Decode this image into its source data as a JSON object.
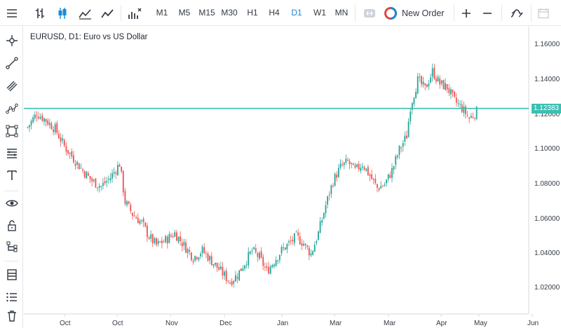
{
  "toolbar": {
    "timeframes": [
      "M1",
      "M5",
      "M15",
      "M30",
      "H1",
      "H4",
      "D1",
      "W1",
      "MN"
    ],
    "active_timeframe": "D1",
    "new_order_label": "New Order"
  },
  "chart": {
    "title": "EURUSD, D1: Euro vs US Dollar",
    "current_price": "1.12383",
    "accent_color": "#3cbfb3",
    "bull_color": "#26a69a",
    "bear_color": "#ef5350"
  },
  "chart_data": {
    "type": "candlestick",
    "title": "EURUSD, D1: Euro vs US Dollar",
    "x_tick_labels": [
      "Oct",
      "Oct",
      "Nov",
      "Dec",
      "Jan",
      "Mar",
      "Mar",
      "Apr",
      "May",
      "Jun"
    ],
    "y_tick_labels": [
      "1.16000",
      "1.14000",
      "1.12000",
      "1.10000",
      "1.08000",
      "1.06000",
      "1.04000",
      "1.02000"
    ],
    "ylim": [
      1.005,
      1.17
    ],
    "horizontal_line": 1.12383,
    "close_path": [
      [
        0,
        1.113
      ],
      [
        5,
        1.121
      ],
      [
        10,
        1.117
      ],
      [
        15,
        1.112
      ],
      [
        20,
        1.102
      ],
      [
        25,
        1.095
      ],
      [
        30,
        1.088
      ],
      [
        35,
        1.082
      ],
      [
        40,
        1.079
      ],
      [
        45,
        1.084
      ],
      [
        50,
        1.092
      ],
      [
        53,
        1.07
      ],
      [
        57,
        1.063
      ],
      [
        62,
        1.058
      ],
      [
        66,
        1.05
      ],
      [
        70,
        1.045
      ],
      [
        75,
        1.048
      ],
      [
        80,
        1.052
      ],
      [
        85,
        1.045
      ],
      [
        90,
        1.038
      ],
      [
        95,
        1.042
      ],
      [
        100,
        1.036
      ],
      [
        105,
        1.03
      ],
      [
        110,
        1.024
      ],
      [
        114,
        1.028
      ],
      [
        118,
        1.035
      ],
      [
        122,
        1.042
      ],
      [
        126,
        1.038
      ],
      [
        130,
        1.03
      ],
      [
        134,
        1.036
      ],
      [
        138,
        1.042
      ],
      [
        142,
        1.046
      ],
      [
        146,
        1.05
      ],
      [
        150,
        1.046
      ],
      [
        154,
        1.04
      ],
      [
        158,
        1.052
      ],
      [
        162,
        1.068
      ],
      [
        166,
        1.082
      ],
      [
        170,
        1.09
      ],
      [
        174,
        1.093
      ],
      [
        178,
        1.088
      ],
      [
        182,
        1.092
      ],
      [
        186,
        1.085
      ],
      [
        190,
        1.078
      ],
      [
        194,
        1.08
      ],
      [
        198,
        1.088
      ],
      [
        202,
        1.1
      ],
      [
        206,
        1.108
      ],
      [
        208,
        1.125
      ],
      [
        212,
        1.14
      ],
      [
        216,
        1.135
      ],
      [
        220,
        1.145
      ],
      [
        224,
        1.138
      ],
      [
        228,
        1.136
      ],
      [
        232,
        1.128
      ],
      [
        236,
        1.124
      ],
      [
        240,
        1.118
      ],
      [
        244,
        1.122
      ]
    ],
    "candle_count": 245
  }
}
